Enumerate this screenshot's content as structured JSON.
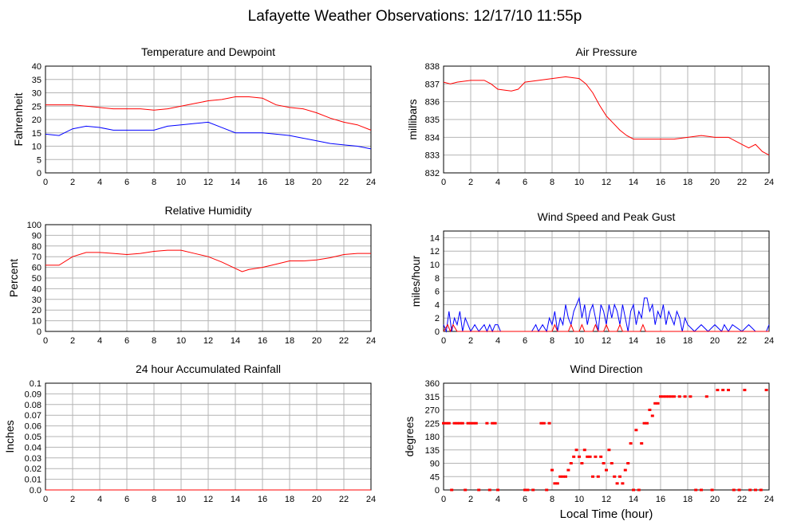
{
  "page_title": "Lafayette Weather Observations: 12/17/10 11:55p",
  "x_axis_label": "Local Time (hour)",
  "colors": {
    "red": "#ff0000",
    "blue": "#0000ff",
    "grid": "#b4b4b4",
    "axis": "#000000"
  },
  "chart_data": [
    {
      "id": "temp",
      "type": "line",
      "title": "Temperature and Dewpoint",
      "ylabel": "Fahrenheit",
      "xlim": [
        0,
        24
      ],
      "ylim": [
        0,
        40
      ],
      "yticks": [
        "0",
        "5",
        "10",
        "15",
        "20",
        "25",
        "30",
        "35",
        "40"
      ],
      "xticks": [
        "0",
        "2",
        "4",
        "6",
        "8",
        "10",
        "12",
        "14",
        "16",
        "18",
        "20",
        "22",
        "24"
      ],
      "grid": true,
      "series": [
        {
          "color": "#ff0000",
          "x": [
            0,
            1,
            2,
            3,
            4,
            5,
            6,
            7,
            8,
            9,
            10,
            11,
            12,
            13,
            14,
            15,
            16,
            17,
            18,
            19,
            20,
            21,
            22,
            23,
            24
          ],
          "y": [
            25.5,
            25.5,
            25.5,
            25,
            24.5,
            24,
            24,
            24,
            23.5,
            24,
            25,
            26,
            27,
            27.5,
            28.5,
            28.5,
            28,
            25.5,
            24.5,
            24,
            22.5,
            20.5,
            19,
            18,
            16
          ]
        },
        {
          "color": "#0000ff",
          "x": [
            0,
            1,
            2,
            3,
            4,
            5,
            6,
            7,
            8,
            9,
            10,
            11,
            12,
            13,
            14,
            15,
            16,
            17,
            18,
            19,
            20,
            21,
            22,
            23,
            24
          ],
          "y": [
            14.5,
            14,
            16.5,
            17.5,
            17,
            16,
            16,
            16,
            16,
            17.5,
            18,
            18.5,
            19,
            17,
            15,
            15,
            15,
            14.5,
            14,
            13,
            12,
            11,
            10.5,
            10,
            9
          ]
        }
      ]
    },
    {
      "id": "pressure",
      "type": "line",
      "title": "Air Pressure",
      "ylabel": "millibars",
      "xlim": [
        0,
        24
      ],
      "ylim": [
        832,
        838
      ],
      "yticks": [
        "832",
        "833",
        "834",
        "835",
        "836",
        "837",
        "838"
      ],
      "xticks": [
        "0",
        "2",
        "4",
        "6",
        "8",
        "10",
        "12",
        "14",
        "16",
        "18",
        "20",
        "22",
        "24"
      ],
      "grid": true,
      "series": [
        {
          "color": "#ff0000",
          "x": [
            0,
            0.5,
            1,
            2,
            3,
            3.5,
            4,
            5,
            5.5,
            6,
            7,
            8,
            9,
            10,
            10.5,
            11,
            11.5,
            12,
            12.5,
            13,
            13.5,
            14,
            15,
            16,
            17,
            18,
            19,
            20,
            21,
            22,
            22.5,
            23,
            23.5,
            24
          ],
          "y": [
            837.1,
            837.0,
            837.1,
            837.2,
            837.2,
            837.0,
            836.7,
            836.6,
            836.7,
            837.1,
            837.2,
            837.3,
            837.4,
            837.3,
            837.0,
            836.5,
            835.8,
            835.2,
            834.8,
            834.4,
            834.1,
            833.9,
            833.9,
            833.9,
            833.9,
            834.0,
            834.1,
            834.0,
            834.0,
            833.6,
            833.4,
            833.6,
            833.2,
            833.0
          ]
        }
      ]
    },
    {
      "id": "humidity",
      "type": "line",
      "title": "Relative Humidity",
      "ylabel": "Percent",
      "xlim": [
        0,
        24
      ],
      "ylim": [
        0,
        100
      ],
      "yticks": [
        "0",
        "10",
        "20",
        "30",
        "40",
        "50",
        "60",
        "70",
        "80",
        "90",
        "100"
      ],
      "xticks": [
        "0",
        "2",
        "4",
        "6",
        "8",
        "10",
        "12",
        "14",
        "16",
        "18",
        "20",
        "22",
        "24"
      ],
      "grid": true,
      "series": [
        {
          "color": "#ff0000",
          "x": [
            0,
            1,
            2,
            3,
            4,
            5,
            6,
            7,
            8,
            9,
            10,
            11,
            12,
            13,
            14,
            14.5,
            15,
            16,
            17,
            18,
            19,
            20,
            21,
            22,
            23,
            24
          ],
          "y": [
            62,
            62,
            70,
            74,
            74,
            73,
            72,
            73,
            75,
            76,
            76,
            73,
            70,
            65,
            59,
            56,
            58,
            60,
            63,
            66,
            66,
            67,
            69,
            72,
            73,
            73
          ]
        }
      ]
    },
    {
      "id": "wind",
      "type": "line",
      "title": "Wind Speed and Peak Gust",
      "ylabel": "miles/hour",
      "xlim": [
        0,
        24
      ],
      "ylim": [
        0,
        15
      ],
      "yticks": [
        "0",
        "2",
        "4",
        "6",
        "8",
        "10",
        "12",
        "14"
      ],
      "xticks": [
        "0",
        "2",
        "4",
        "6",
        "8",
        "10",
        "12",
        "14",
        "16",
        "18",
        "20",
        "22",
        "24"
      ],
      "grid": true,
      "series": [
        {
          "color": "#0000ff",
          "x": [
            0,
            0.2,
            0.4,
            0.6,
            0.8,
            1,
            1.2,
            1.4,
            1.6,
            1.8,
            2,
            2.3,
            2.6,
            3,
            3.2,
            3.4,
            3.6,
            3.8,
            4,
            4.2,
            6.5,
            6.8,
            7,
            7.3,
            7.6,
            7.8,
            8,
            8.2,
            8.4,
            8.6,
            8.8,
            9,
            9.2,
            9.4,
            9.6,
            9.8,
            10,
            10.2,
            10.4,
            10.6,
            10.8,
            11,
            11.2,
            11.4,
            11.6,
            11.8,
            12,
            12.2,
            12.4,
            12.6,
            12.8,
            13,
            13.2,
            13.4,
            13.6,
            13.8,
            14,
            14.2,
            14.4,
            14.6,
            14.8,
            15,
            15.2,
            15.4,
            15.6,
            15.8,
            16,
            16.2,
            16.4,
            16.6,
            16.8,
            17,
            17.2,
            17.4,
            17.6,
            17.8,
            18,
            18.5,
            19,
            19.5,
            20,
            20.5,
            20.7,
            21,
            21.3,
            22,
            22.5,
            23,
            23.8,
            24
          ],
          "y": [
            1,
            0,
            3,
            0,
            2,
            1,
            3,
            0,
            2,
            1,
            0,
            1,
            0,
            1,
            0,
            1,
            0,
            1,
            1,
            0,
            0,
            1,
            0,
            1,
            0,
            2,
            1,
            3,
            0,
            2,
            1,
            4,
            2,
            1,
            3,
            4,
            5,
            2,
            4,
            1,
            3,
            4,
            2,
            0,
            4,
            3,
            1,
            4,
            2,
            4,
            3,
            1,
            4,
            2,
            0,
            3,
            4,
            1,
            3,
            2,
            5,
            5,
            3,
            4,
            1,
            3,
            2,
            4,
            1,
            3,
            2,
            1,
            3,
            2,
            0,
            2,
            1,
            0,
            1,
            0,
            1,
            0,
            1,
            0,
            1,
            0,
            1,
            0,
            0,
            1
          ]
        },
        {
          "color": "#ff0000",
          "x": [
            0,
            0.3,
            0.5,
            0.7,
            1,
            8,
            8.2,
            8.4,
            8.6,
            9.2,
            9.4,
            9.6,
            10,
            10.2,
            10.4,
            11,
            11.2,
            11.4,
            11.8,
            12,
            12.2,
            12.8,
            13,
            13.2,
            13.5,
            14.5,
            14.7,
            14.9,
            24
          ],
          "y": [
            0,
            1,
            0,
            1,
            0,
            0,
            1,
            0,
            0,
            0,
            1,
            0,
            0,
            1,
            0,
            0,
            1,
            0,
            0,
            1,
            0,
            0,
            1,
            0,
            0,
            0,
            1,
            0,
            0
          ]
        }
      ]
    },
    {
      "id": "rain",
      "type": "line",
      "title": "24 hour Accumulated Rainfall",
      "ylabel": "Inches",
      "xlim": [
        0,
        24
      ],
      "ylim": [
        0,
        0.1
      ],
      "yticks": [
        "0.0",
        "0.01",
        "0.02",
        "0.03",
        "0.04",
        "0.05",
        "0.06",
        "0.07",
        "0.08",
        "0.09",
        "0.1"
      ],
      "xticks": [
        "0",
        "2",
        "4",
        "6",
        "8",
        "10",
        "12",
        "14",
        "16",
        "18",
        "20",
        "22",
        "24"
      ],
      "grid": true,
      "series": [
        {
          "color": "#ff0000",
          "x": [
            0,
            24
          ],
          "y": [
            0,
            0
          ]
        }
      ]
    },
    {
      "id": "direction",
      "type": "scatter",
      "title": "Wind Direction",
      "ylabel": "degrees",
      "xlim": [
        0,
        24
      ],
      "ylim": [
        0,
        360
      ],
      "yticks": [
        "0",
        "45",
        "90",
        "135",
        "180",
        "225",
        "270",
        "315",
        "360"
      ],
      "xticks": [
        "0",
        "2",
        "4",
        "6",
        "8",
        "10",
        "12",
        "14",
        "16",
        "18",
        "20",
        "22",
        "24"
      ],
      "grid": true,
      "series": [
        {
          "color": "#ff0000",
          "x": [
            0,
            0.2,
            0.4,
            0.6,
            0.8,
            1,
            1.2,
            1.4,
            1.6,
            1.8,
            2,
            2.2,
            2.4,
            2.6,
            3.2,
            3.4,
            3.6,
            3.8,
            4,
            6,
            6.2,
            6.6,
            7.2,
            7.4,
            7.6,
            7.8,
            8,
            8.2,
            8.4,
            8.6,
            8.8,
            9,
            9.2,
            9.4,
            9.6,
            9.8,
            10,
            10.2,
            10.4,
            10.6,
            10.8,
            11,
            11.2,
            11.4,
            11.6,
            11.8,
            12,
            12.2,
            12.4,
            12.6,
            12.8,
            13,
            13.2,
            13.4,
            13.6,
            13.8,
            14,
            14.2,
            14.4,
            14.6,
            14.8,
            15,
            15.2,
            15.4,
            15.6,
            15.8,
            16,
            16.2,
            16.4,
            16.6,
            16.8,
            17,
            17.4,
            17.8,
            18.2,
            18.6,
            19,
            19.4,
            19.8,
            20.2,
            20.6,
            21,
            21.4,
            21.8,
            22.2,
            22.6,
            23,
            23.4,
            23.8
          ],
          "y": [
            225,
            225,
            225,
            0,
            225,
            225,
            225,
            225,
            0,
            225,
            225,
            225,
            225,
            0,
            225,
            0,
            225,
            225,
            0,
            0,
            0,
            0,
            225,
            225,
            0,
            225,
            67,
            22,
            22,
            45,
            45,
            45,
            67,
            90,
            112,
            135,
            112,
            90,
            135,
            112,
            112,
            45,
            112,
            45,
            112,
            90,
            67,
            135,
            90,
            45,
            22,
            45,
            22,
            67,
            90,
            157,
            0,
            202,
            0,
            157,
            225,
            225,
            270,
            250,
            292,
            292,
            315,
            315,
            315,
            315,
            315,
            315,
            315,
            315,
            315,
            0,
            0,
            315,
            0,
            337,
            337,
            337,
            0,
            0,
            337,
            0,
            0,
            0,
            337
          ]
        }
      ]
    }
  ]
}
